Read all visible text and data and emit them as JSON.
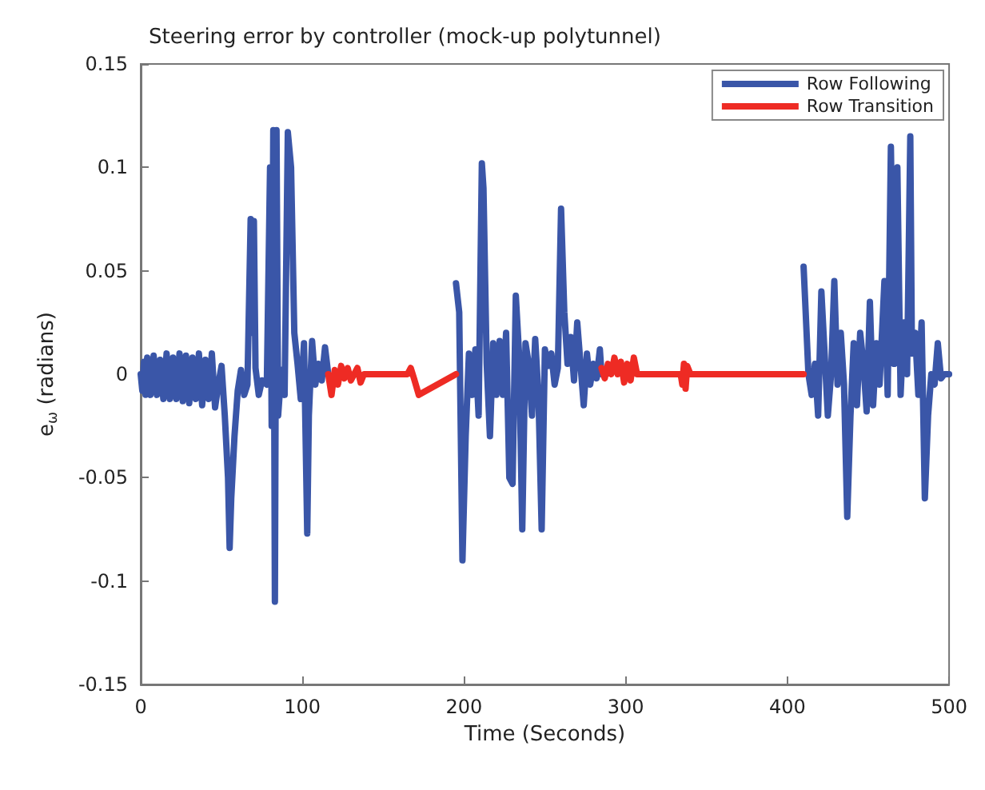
{
  "chart_data": {
    "type": "line",
    "title": "Steering error by controller (mock-up polytunnel)",
    "xlabel": "Time (Seconds)",
    "ylabel": "e$_{ω}$ (radians)",
    "xlim": [
      0,
      500
    ],
    "xticks": [
      0,
      100,
      200,
      300,
      400,
      500
    ],
    "ylim": [
      -0.15,
      0.15
    ],
    "yticks": [
      -0.15,
      -0.1,
      -0.05,
      0,
      0.05,
      0.1,
      0.15
    ],
    "grid": false,
    "legend": "top right",
    "marker": "none",
    "line_style": "solid",
    "series": [
      {
        "name": "Row Following",
        "color": "#3a56a8",
        "x": [
          0,
          1,
          2,
          3,
          4,
          6,
          8,
          10,
          12,
          14,
          16,
          18,
          20,
          22,
          24,
          26,
          28,
          30,
          32,
          34,
          36,
          38,
          40,
          42,
          44,
          46,
          48,
          50,
          52,
          54,
          55,
          56,
          58,
          60,
          62,
          64,
          66,
          68,
          69,
          70,
          71,
          73,
          75,
          78,
          80,
          81,
          82,
          83,
          84,
          85,
          87,
          89,
          91,
          93,
          95,
          97,
          99,
          101,
          103,
          104,
          106,
          108,
          110,
          112,
          114,
          116,
          150,
          195,
          197,
          199,
          201,
          203,
          205,
          207,
          209,
          211,
          212,
          214,
          216,
          218,
          220,
          222,
          224,
          226,
          228,
          230,
          232,
          234,
          236,
          238,
          240,
          242,
          244,
          246,
          248,
          250,
          252,
          254,
          256,
          258,
          260,
          262,
          264,
          266,
          268,
          270,
          272,
          274,
          276,
          278,
          280,
          282,
          284,
          285,
          350,
          410,
          411,
          413,
          415,
          417,
          419,
          421,
          423,
          425,
          427,
          429,
          431,
          433,
          435,
          437,
          439,
          441,
          443,
          445,
          447,
          449,
          451,
          453,
          455,
          457,
          460,
          462,
          464,
          466,
          468,
          470,
          472,
          474,
          476,
          477,
          479,
          481,
          483,
          485,
          487,
          489,
          491,
          493,
          495,
          497,
          500
        ],
        "values": [
          0,
          -0.008,
          0.006,
          -0.01,
          0.008,
          -0.01,
          0.009,
          -0.01,
          0.007,
          -0.012,
          0.01,
          -0.012,
          0.008,
          -0.012,
          0.01,
          -0.013,
          0.009,
          -0.014,
          0.008,
          -0.012,
          0.01,
          -0.015,
          0.007,
          -0.012,
          0.01,
          -0.016,
          -0.005,
          0.004,
          -0.02,
          -0.05,
          -0.084,
          -0.06,
          -0.03,
          -0.008,
          0.002,
          -0.01,
          -0.005,
          0.075,
          0.02,
          0.074,
          0.003,
          -0.01,
          -0.003,
          -0.005,
          0.1,
          -0.025,
          0.118,
          -0.11,
          0.118,
          -0.02,
          0.002,
          -0.01,
          0.117,
          0.1,
          0.02,
          0.005,
          -0.012,
          0.015,
          -0.077,
          -0.02,
          0.016,
          -0.005,
          0.005,
          -0.003,
          0.013,
          0,
          null,
          0.044,
          0.03,
          -0.09,
          -0.03,
          0.01,
          -0.01,
          0.012,
          -0.02,
          0.102,
          0.09,
          0.005,
          -0.03,
          0.015,
          -0.01,
          0.016,
          -0.01,
          0.02,
          -0.05,
          -0.053,
          0.038,
          0.01,
          -0.075,
          0.015,
          0.005,
          -0.02,
          0.017,
          -0.01,
          -0.075,
          0.012,
          0.004,
          0.01,
          -0.005,
          0.003,
          0.08,
          0.03,
          0.005,
          0.018,
          -0.003,
          0.025,
          0.005,
          -0.015,
          0.01,
          -0.005,
          0.005,
          -0.002,
          0.012,
          0,
          null,
          0.052,
          0.035,
          0,
          -0.01,
          0.005,
          -0.02,
          0.04,
          0.01,
          -0.02,
          0,
          0.045,
          -0.005,
          0.02,
          -0.005,
          -0.069,
          -0.02,
          0.015,
          -0.015,
          0.02,
          0.005,
          -0.018,
          0.035,
          -0.015,
          0.015,
          -0.005,
          0.045,
          -0.01,
          0.11,
          0.005,
          0.1,
          -0.01,
          0.025,
          0,
          0.115,
          0.01,
          0.02,
          -0.01,
          0.025,
          -0.06,
          -0.02,
          0,
          -0.005,
          0.015,
          -0.002,
          0,
          0
        ]
      },
      {
        "name": "Row Transition",
        "color": "#ee2b24",
        "x": [
          116,
          118,
          120,
          122,
          124,
          126,
          128,
          130,
          132,
          134,
          136,
          138,
          140,
          165,
          167,
          169,
          172,
          195,
          240,
          285,
          287,
          289,
          291,
          293,
          295,
          297,
          299,
          301,
          303,
          305,
          307,
          309,
          334,
          335,
          336,
          337,
          338,
          340,
          410
        ],
        "values": [
          0,
          -0.01,
          0.002,
          -0.005,
          0.004,
          -0.002,
          0.003,
          -0.003,
          0,
          0.003,
          -0.004,
          0,
          0,
          0,
          0.003,
          -0.002,
          -0.01,
          0,
          null,
          0.003,
          -0.002,
          0.005,
          0,
          0.008,
          0,
          0.006,
          -0.004,
          0.005,
          -0.003,
          0.008,
          0,
          0,
          0,
          -0.005,
          0.005,
          -0.007,
          0.004,
          0,
          0
        ]
      }
    ]
  }
}
